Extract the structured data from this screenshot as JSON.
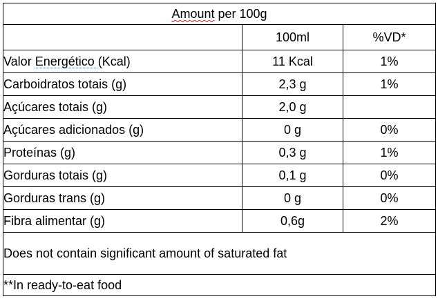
{
  "table": {
    "title": {
      "first_word": "Amount",
      "rest": " per 100g"
    },
    "headers": {
      "label": "",
      "per_100ml": "100ml",
      "percent_dv": "%VD*"
    },
    "rows": [
      {
        "pre": "Valor ",
        "underlined": "Energético  ",
        "post": "(Kcal)",
        "value": "11 Kcal",
        "dv": "1%"
      },
      {
        "pre": "Carboidratos totais (g)",
        "underlined": "",
        "post": "",
        "value": "2,3 g",
        "dv": "1%"
      },
      {
        "pre": "Açúcares totais (g)",
        "underlined": "",
        "post": "",
        "value": "2,0 g",
        "dv": ""
      },
      {
        "pre": "Açúcares adicionados (g)",
        "underlined": "",
        "post": "",
        "value": "0 g",
        "dv": "0%"
      },
      {
        "pre": "Proteínas (g)",
        "underlined": "",
        "post": "",
        "value": "0,3 g",
        "dv": "1%"
      },
      {
        "pre": "Gorduras totais (g)",
        "underlined": "",
        "post": "",
        "value": "0,1 g",
        "dv": "0%"
      },
      {
        "pre": "Gorduras trans (g)",
        "underlined": "",
        "post": "",
        "value": "0 g",
        "dv": "0%"
      },
      {
        "pre": "Fibra alimentar (g)",
        "underlined": "",
        "post": "",
        "value": "0,6g",
        "dv": "2%"
      }
    ],
    "note": "Does not contain significant amount of saturated fat",
    "footnote": "**In ready-to-eat food"
  }
}
